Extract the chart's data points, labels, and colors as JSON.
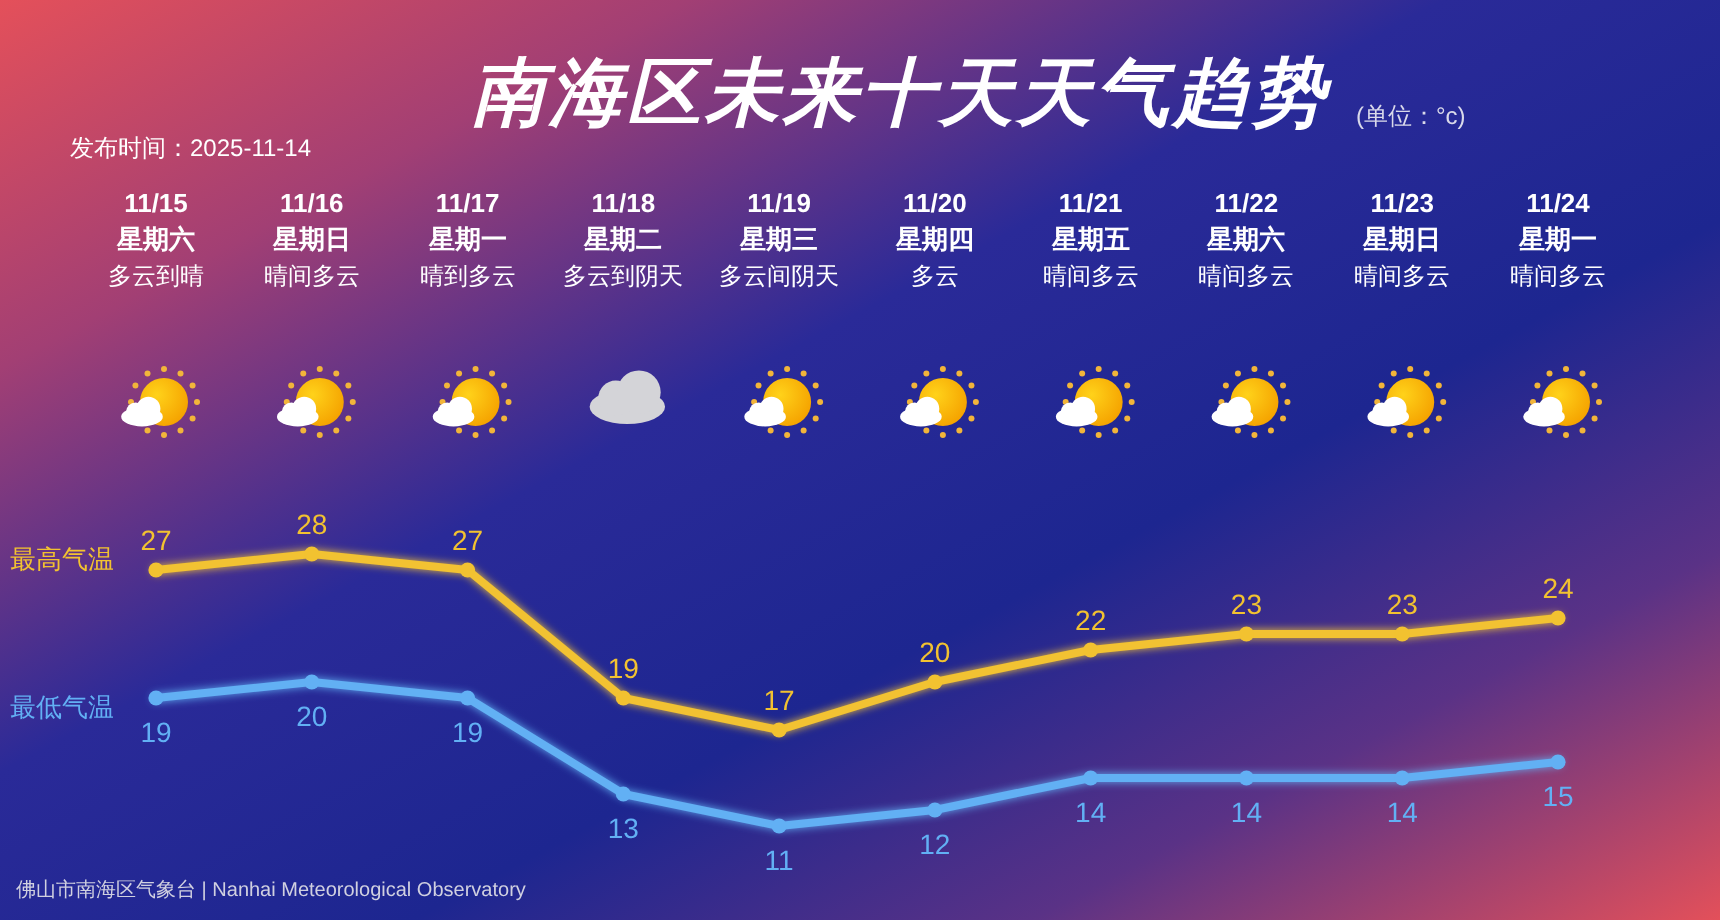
{
  "chart_data": {
    "type": "line",
    "title": "南海区未来十天天气趋势",
    "subtitle": "(单位：°c)",
    "annotations": [
      "发布时间：2025-11-14",
      "佛山市南海区气象台 | Nanhai Meteorological Observatory"
    ],
    "categories": [
      "11/15星期六多云到晴",
      "11/16星期日晴间多云",
      "11/17星期一晴到多云",
      "11/18星期二多云到阴天",
      "11/19星期三多云间阴天",
      "11/20星期四多云",
      "11/21星期五晴间多云",
      "11/22星期六晴间多云",
      "11/23星期日晴间多云",
      "11/24星期一晴间多云"
    ],
    "series": [
      {
        "name": "最高气温",
        "color": "#f2c230",
        "values": [
          27,
          28,
          27,
          19,
          17,
          20,
          22,
          23,
          23,
          24
        ]
      },
      {
        "name": "最低气温",
        "color": "#62b0f4",
        "values": [
          19,
          20,
          19,
          13,
          11,
          12,
          14,
          14,
          14,
          15
        ]
      }
    ],
    "marker": "circle",
    "line_style": "solid",
    "data_labels": true,
    "tick_labels": "x",
    "legend": "left"
  }
}
